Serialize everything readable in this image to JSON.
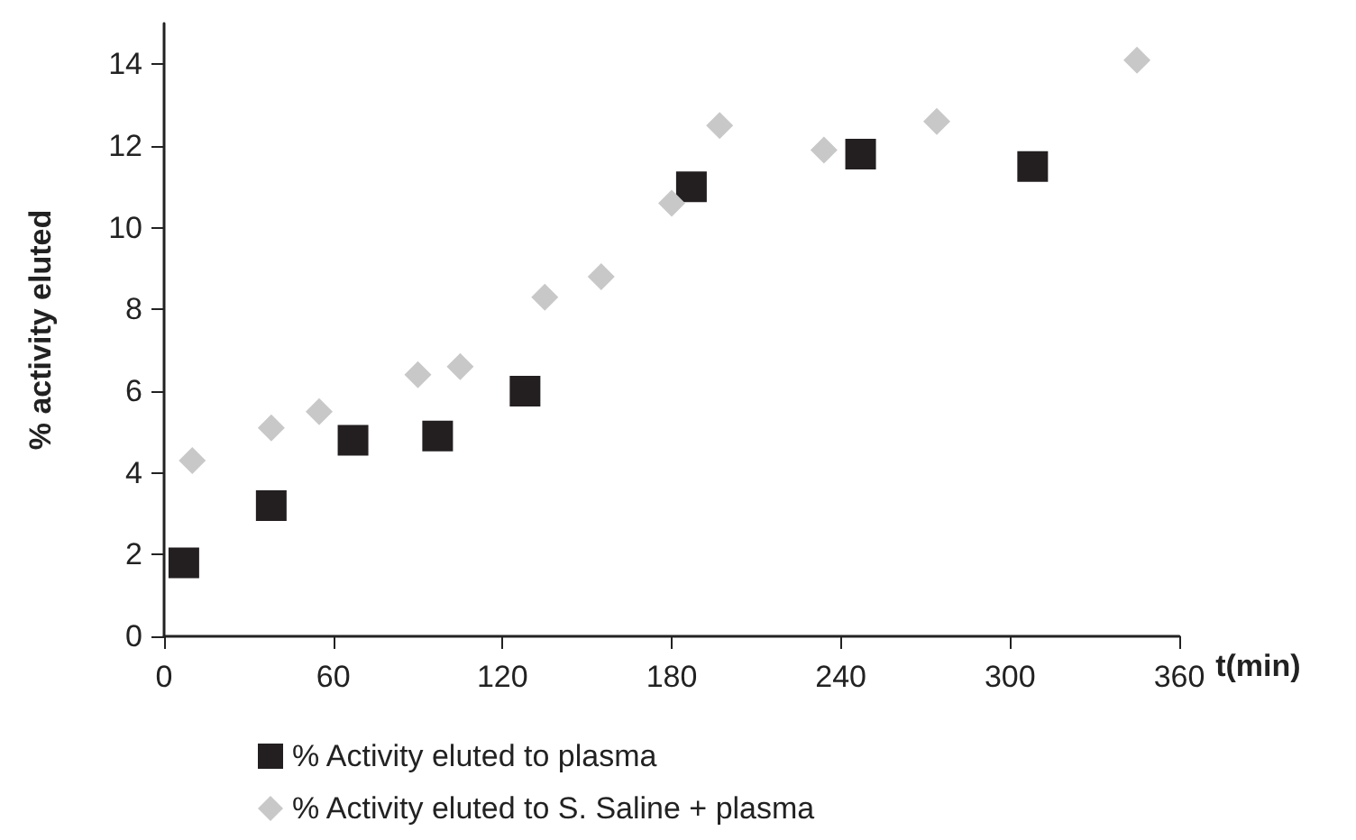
{
  "chart_data": {
    "type": "scatter",
    "xlabel": "t(min)",
    "ylabel": "% activity eluted",
    "xlim": [
      0,
      360
    ],
    "xticks": [
      0,
      60,
      120,
      180,
      240,
      300,
      360
    ],
    "ylim": [
      0,
      15
    ],
    "yticks": [
      0,
      2,
      4,
      6,
      8,
      10,
      12,
      14
    ],
    "grid": false,
    "legend": "bottom",
    "series": [
      {
        "name": "% Activity eluted to plasma",
        "color": "#231f20",
        "marker": "square",
        "x": [
          7,
          38,
          67,
          97,
          128,
          187,
          247,
          308
        ],
        "values": [
          1.8,
          3.2,
          4.8,
          4.9,
          6.0,
          11.0,
          11.8,
          11.5
        ]
      },
      {
        "name": "% Activity eluted to S. Saline + plasma",
        "color": "#c8c8c8",
        "marker": "diamond",
        "x": [
          10,
          38,
          55,
          90,
          105,
          135,
          155,
          180,
          197,
          234,
          274,
          345
        ],
        "values": [
          4.3,
          5.1,
          5.5,
          6.4,
          6.6,
          8.3,
          8.8,
          10.6,
          12.5,
          11.9,
          12.6,
          14.1
        ]
      }
    ]
  }
}
